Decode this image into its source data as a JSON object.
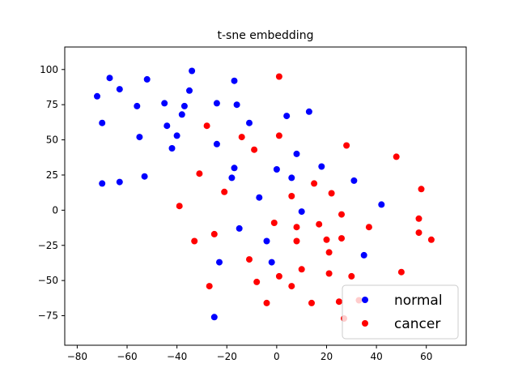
{
  "chart_data": {
    "type": "scatter",
    "title": "t-sne embedding",
    "xlabel": "",
    "ylabel": "",
    "xlim": [
      -85,
      76
    ],
    "ylim": [
      -96,
      116
    ],
    "xticks": [
      -80,
      -60,
      -40,
      -20,
      0,
      20,
      40,
      60
    ],
    "yticks": [
      -75,
      -50,
      -25,
      0,
      25,
      50,
      75,
      100
    ],
    "grid": false,
    "legend_position": "lower-right",
    "series": [
      {
        "name": "normal",
        "color": "#0000ff",
        "points": [
          [
            -67,
            94
          ],
          [
            -52,
            93
          ],
          [
            -34,
            99
          ],
          [
            -17,
            92
          ],
          [
            -72,
            81
          ],
          [
            -63,
            86
          ],
          [
            -35,
            85
          ],
          [
            -56,
            74
          ],
          [
            -45,
            76
          ],
          [
            -37,
            74
          ],
          [
            -24,
            76
          ],
          [
            -16,
            75
          ],
          [
            -70,
            62
          ],
          [
            -38,
            68
          ],
          [
            -44,
            60
          ],
          [
            -11,
            62
          ],
          [
            4,
            67
          ],
          [
            13,
            70
          ],
          [
            -55,
            52
          ],
          [
            -40,
            53
          ],
          [
            -42,
            44
          ],
          [
            -24,
            47
          ],
          [
            8,
            40
          ],
          [
            -17,
            30
          ],
          [
            0,
            29
          ],
          [
            18,
            31
          ],
          [
            -53,
            24
          ],
          [
            -70,
            19
          ],
          [
            -63,
            20
          ],
          [
            -18,
            23
          ],
          [
            6,
            23
          ],
          [
            31,
            21
          ],
          [
            -7,
            9
          ],
          [
            42,
            4
          ],
          [
            10,
            -1
          ],
          [
            -15,
            -13
          ],
          [
            -4,
            -22
          ],
          [
            -23,
            -37
          ],
          [
            -2,
            -37
          ],
          [
            35,
            -32
          ],
          [
            -25,
            -76
          ]
        ]
      },
      {
        "name": "cancer",
        "color": "#ff0000",
        "points": [
          [
            1,
            95
          ],
          [
            -28,
            60
          ],
          [
            -14,
            52
          ],
          [
            1,
            53
          ],
          [
            -9,
            43
          ],
          [
            28,
            46
          ],
          [
            48,
            38
          ],
          [
            -31,
            26
          ],
          [
            -21,
            13
          ],
          [
            15,
            19
          ],
          [
            22,
            12
          ],
          [
            58,
            15
          ],
          [
            6,
            10
          ],
          [
            -39,
            3
          ],
          [
            -1,
            -9
          ],
          [
            26,
            -3
          ],
          [
            8,
            -12
          ],
          [
            17,
            -10
          ],
          [
            37,
            -12
          ],
          [
            57,
            -6
          ],
          [
            -33,
            -22
          ],
          [
            -25,
            -17
          ],
          [
            8,
            -22
          ],
          [
            20,
            -21
          ],
          [
            26,
            -20
          ],
          [
            57,
            -16
          ],
          [
            62,
            -21
          ],
          [
            21,
            -30
          ],
          [
            -11,
            -35
          ],
          [
            10,
            -42
          ],
          [
            21,
            -45
          ],
          [
            50,
            -44
          ],
          [
            -8,
            -51
          ],
          [
            1,
            -47
          ],
          [
            30,
            -47
          ],
          [
            -27,
            -54
          ],
          [
            6,
            -54
          ],
          [
            -4,
            -66
          ],
          [
            14,
            -66
          ],
          [
            25,
            -65
          ],
          [
            33,
            -64
          ],
          [
            27,
            -77
          ]
        ]
      }
    ]
  }
}
